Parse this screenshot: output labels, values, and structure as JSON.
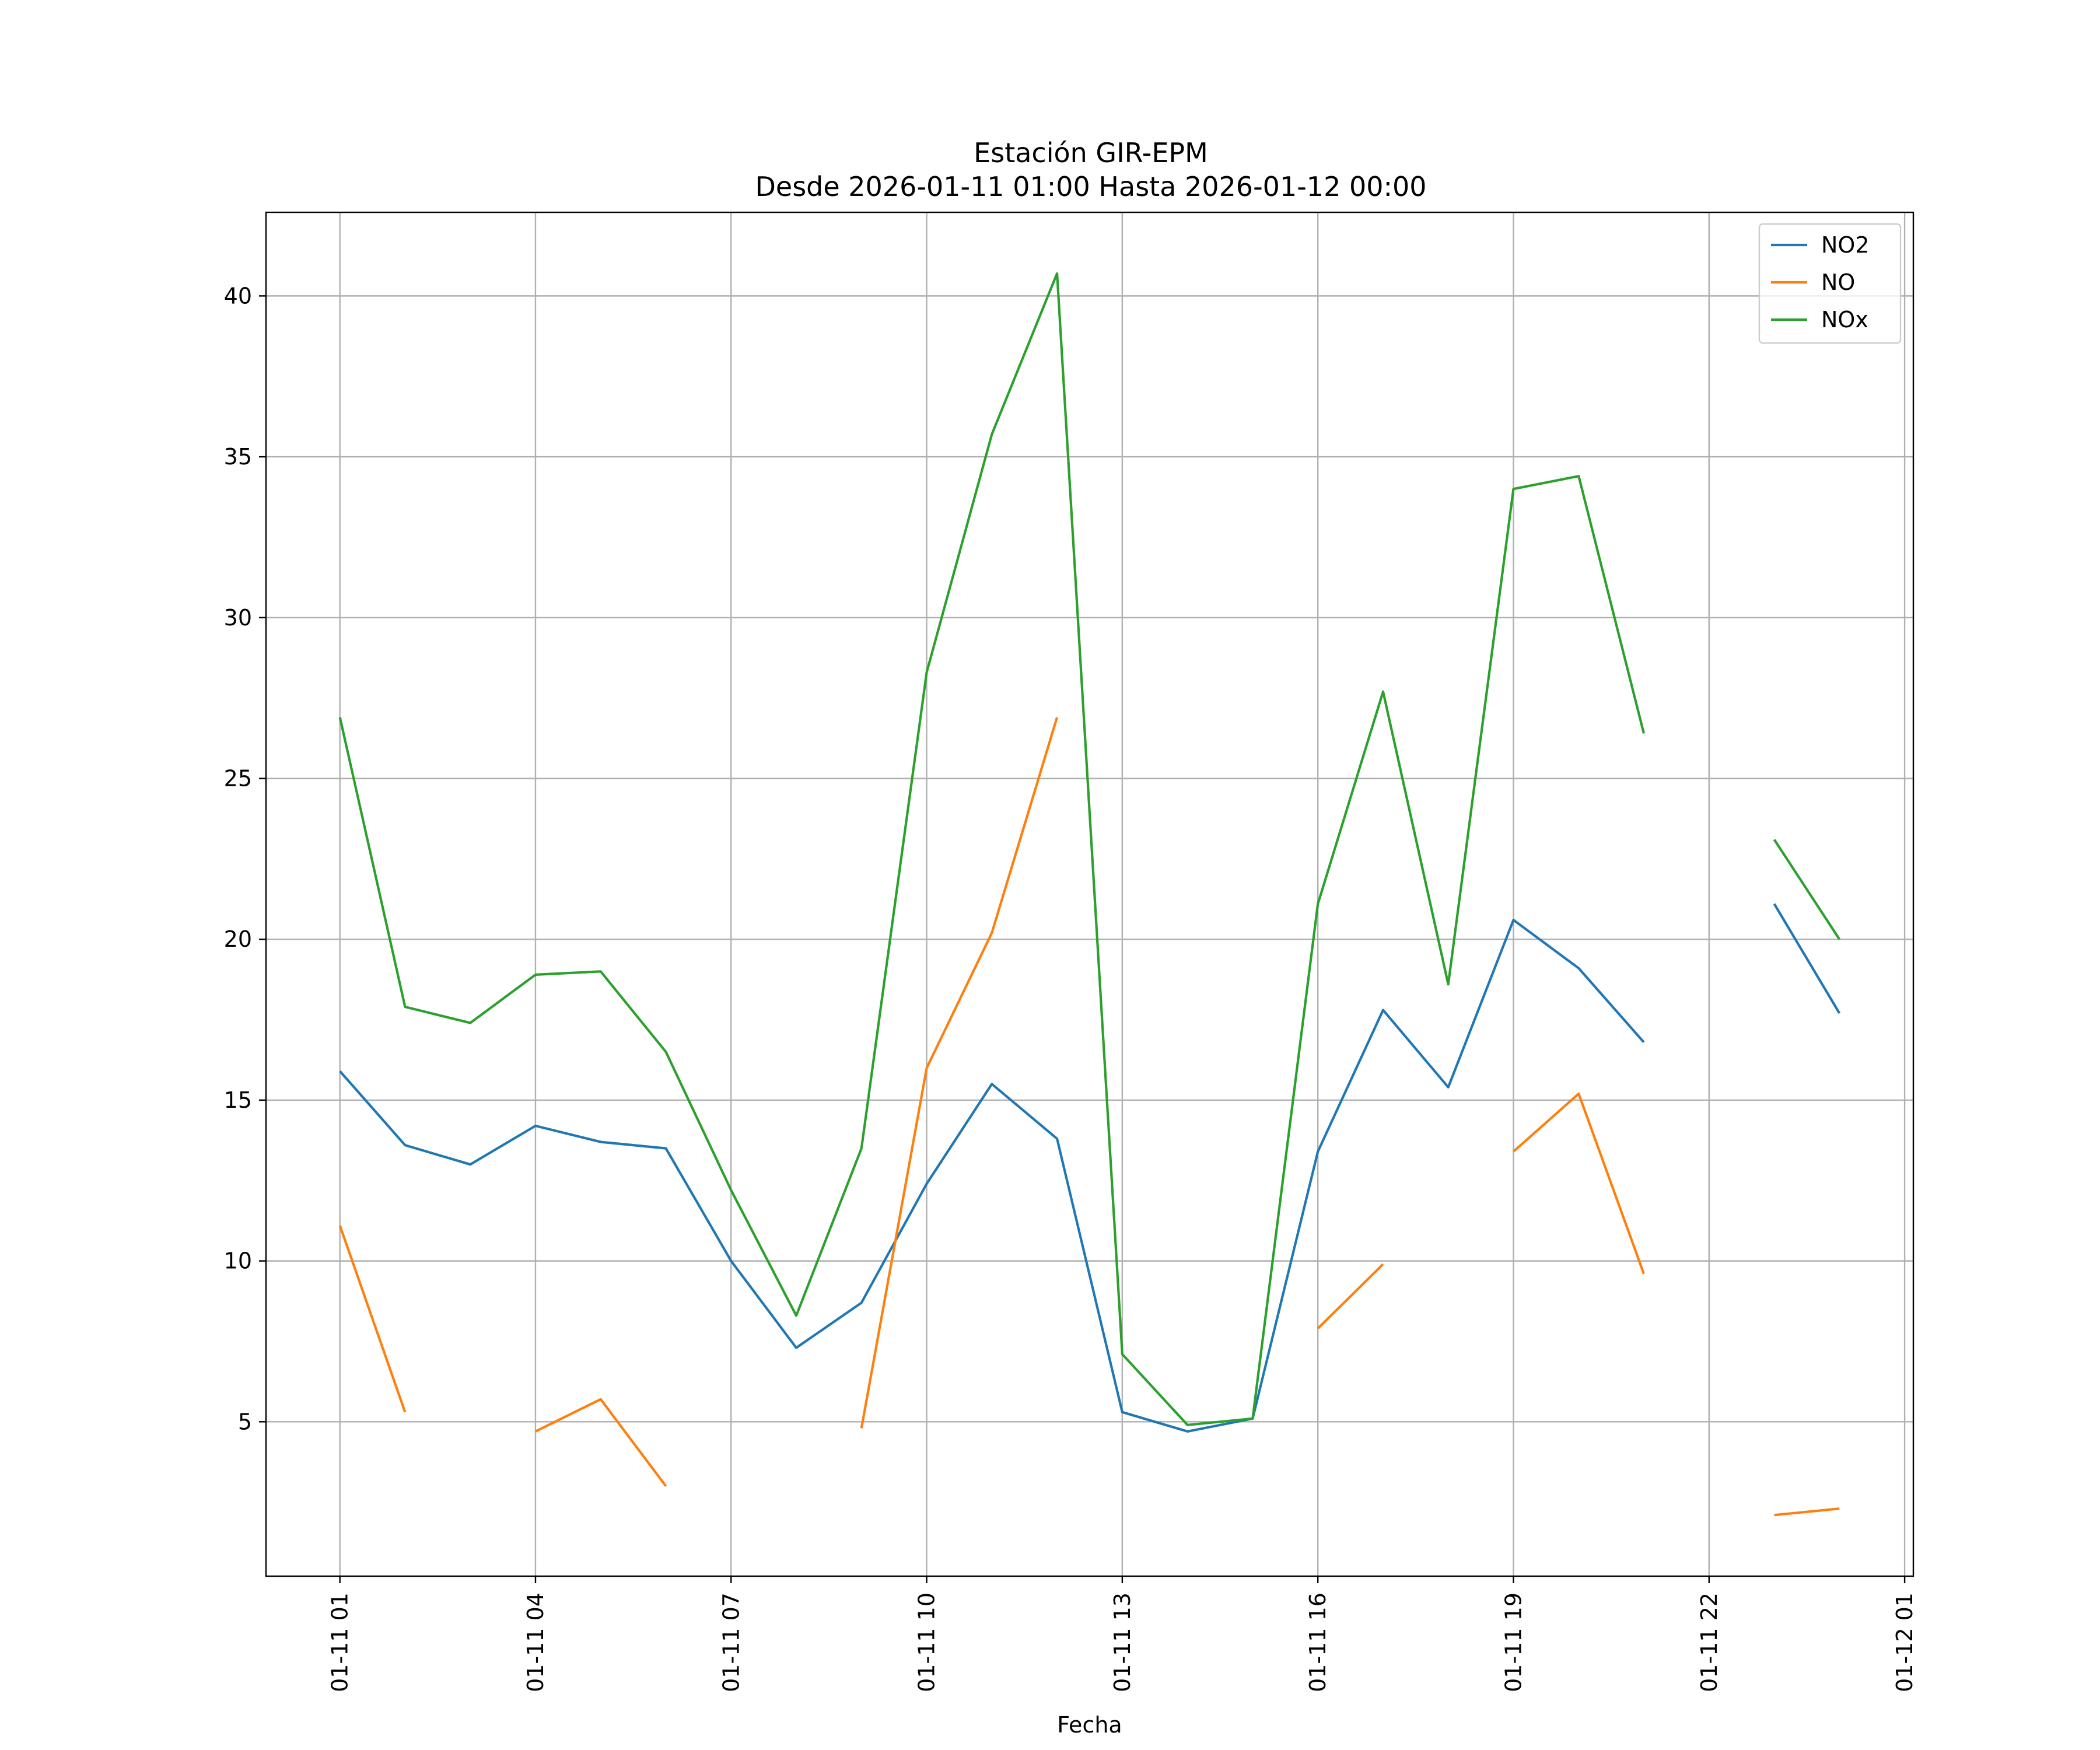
{
  "chart_data": {
    "type": "line",
    "title": "Estación GIR-EPM",
    "subtitle": "Desde 2026-01-11 01:00 Hasta 2026-01-12 00:00",
    "xlabel": "Fecha",
    "ylabel": "",
    "x": [
      "2026-01-11 01:00",
      "2026-01-11 02:00",
      "2026-01-11 03:00",
      "2026-01-11 04:00",
      "2026-01-11 05:00",
      "2026-01-11 06:00",
      "2026-01-11 07:00",
      "2026-01-11 08:00",
      "2026-01-11 09:00",
      "2026-01-11 10:00",
      "2026-01-11 11:00",
      "2026-01-11 12:00",
      "2026-01-11 13:00",
      "2026-01-11 14:00",
      "2026-01-11 15:00",
      "2026-01-11 16:00",
      "2026-01-11 17:00",
      "2026-01-11 18:00",
      "2026-01-11 19:00",
      "2026-01-11 20:00",
      "2026-01-11 21:00",
      "2026-01-11 22:00",
      "2026-01-11 23:00",
      "2026-01-12 00:00"
    ],
    "x_tick_labels": [
      "01-11 01",
      "01-11 04",
      "01-11 07",
      "01-11 10",
      "01-11 13",
      "01-11 16",
      "01-11 19",
      "01-11 22",
      "01-12 01"
    ],
    "x_tick_dates": [
      "2026-01-11 01:00",
      "2026-01-11 04:00",
      "2026-01-11 07:00",
      "2026-01-11 10:00",
      "2026-01-11 13:00",
      "2026-01-11 16:00",
      "2026-01-11 19:00",
      "2026-01-11 22:00",
      "2026-01-12 01:00"
    ],
    "xlim": [
      "2026-01-10 23:52",
      "2026-01-12 01:08"
    ],
    "y_ticks": [
      5,
      10,
      15,
      20,
      25,
      30,
      35,
      40
    ],
    "ylim": [
      0.2,
      42.6
    ],
    "grid": true,
    "legend_position": "top-right",
    "series": [
      {
        "name": "NO2",
        "color": "#1f77b4",
        "values": [
          15.9,
          13.6,
          13.0,
          14.2,
          13.7,
          13.5,
          10.0,
          7.3,
          8.7,
          12.4,
          15.5,
          13.8,
          5.3,
          4.7,
          5.1,
          13.4,
          17.8,
          15.4,
          20.6,
          19.1,
          16.8,
          null,
          21.1,
          17.7
        ]
      },
      {
        "name": "NO",
        "color": "#ff7f0e",
        "values": [
          11.1,
          5.3,
          null,
          4.7,
          5.7,
          3.0,
          null,
          null,
          4.8,
          16.0,
          20.2,
          26.9,
          null,
          null,
          null,
          7.9,
          9.9,
          null,
          13.4,
          15.2,
          9.6,
          null,
          2.1,
          2.3
        ]
      },
      {
        "name": "NOx",
        "color": "#2ca02c",
        "values": [
          26.9,
          17.9,
          17.4,
          18.9,
          19.0,
          16.5,
          12.2,
          8.3,
          13.5,
          28.3,
          35.7,
          40.7,
          7.1,
          4.9,
          5.1,
          21.1,
          27.7,
          18.6,
          34.0,
          34.4,
          26.4,
          null,
          23.1,
          20.0
        ]
      }
    ]
  }
}
